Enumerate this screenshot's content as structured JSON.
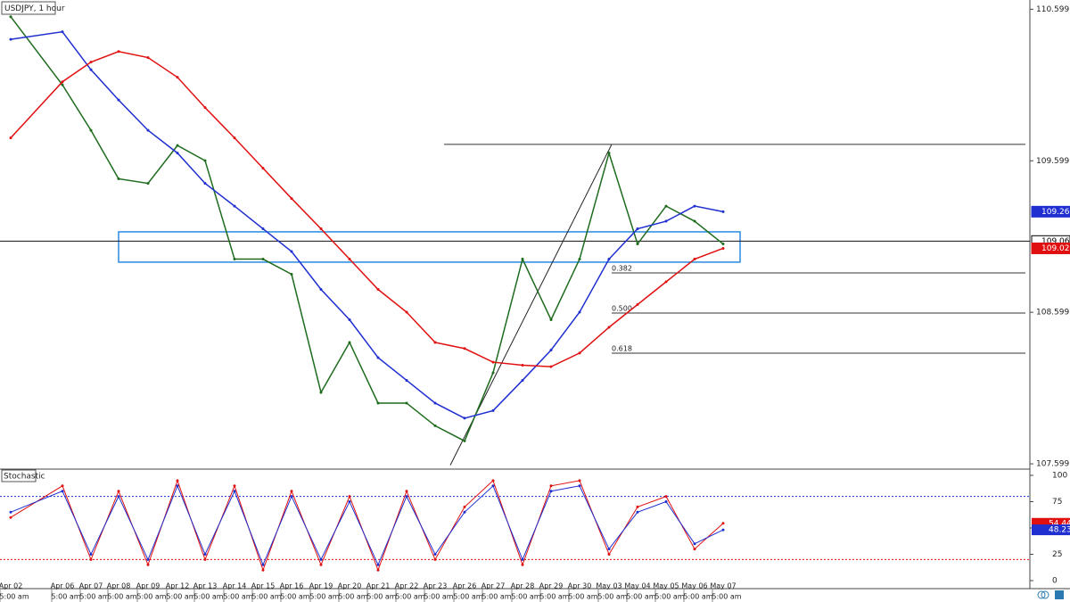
{
  "chart_data": [
    {
      "type": "line",
      "title": "USDJPY, 1 hour",
      "categories": [
        "Apr 02",
        "Apr 06",
        "Apr 07",
        "Apr 08",
        "Apr 09",
        "Apr 12",
        "Apr 13",
        "Apr 14",
        "Apr 15",
        "Apr 16",
        "Apr 19",
        "Apr 20",
        "Apr 21",
        "Apr 22",
        "Apr 23",
        "Apr 26",
        "Apr 27",
        "Apr 28",
        "Apr 29",
        "Apr 30",
        "May 03",
        "May 04",
        "May 05",
        "May 06",
        "May 07"
      ],
      "time_label": "5:00 am",
      "series": [
        {
          "color": "#1e6b1e",
          "values": [
            110.55,
            110.1,
            109.8,
            109.48,
            109.45,
            109.7,
            109.6,
            108.95,
            108.95,
            108.85,
            108.07,
            108.4,
            108.0,
            108.0,
            107.85,
            107.75,
            108.2,
            108.95,
            108.55,
            108.95,
            109.65,
            109.05,
            109.3,
            109.2,
            109.05
          ]
        },
        {
          "color": "#1f2fd0",
          "values": [
            110.4,
            110.45,
            110.2,
            110.0,
            109.8,
            109.65,
            109.45,
            109.3,
            109.15,
            109.0,
            108.75,
            108.55,
            108.3,
            108.15,
            108.0,
            107.9,
            107.95,
            108.15,
            108.35,
            108.6,
            108.95,
            109.15,
            109.2,
            109.3,
            109.263
          ]
        },
        {
          "color": "#e01010",
          "values": [
            109.75,
            110.12,
            110.25,
            110.32,
            110.28,
            110.15,
            109.95,
            109.75,
            109.55,
            109.35,
            109.15,
            108.95,
            108.75,
            108.6,
            108.4,
            108.36,
            108.27,
            108.25,
            108.24,
            108.33,
            108.5,
            108.65,
            108.8,
            108.95,
            109.021
          ]
        }
      ],
      "ylim": [
        107.57,
        110.66
      ],
      "yticks": [
        107.599,
        108.599,
        109.599,
        110.599
      ],
      "zone": [
        108.93,
        109.13
      ],
      "current_price": 109.069,
      "swing_high": 109.707,
      "trend_line": [
        107.59,
        109.707
      ],
      "fib_levels": [
        {
          "label": "0.382",
          "value": 108.859
        },
        {
          "label": "0.500",
          "value": 108.594
        },
        {
          "label": "0.618",
          "value": 108.329
        }
      ],
      "price_labels": [
        {
          "value": 109.263,
          "color": "#1f2fd0"
        },
        {
          "value": 109.069,
          "color": "#000000"
        },
        {
          "value": 109.021,
          "color": "#e01010"
        }
      ]
    },
    {
      "type": "line",
      "title": "Stochastic",
      "series": [
        {
          "color": "#e01010",
          "values": [
            60,
            90,
            20,
            85,
            15,
            95,
            20,
            90,
            10,
            85,
            15,
            80,
            10,
            85,
            20,
            70,
            95,
            15,
            90,
            95,
            25,
            70,
            80,
            30,
            54.44
          ]
        },
        {
          "color": "#1f2fd0",
          "values": [
            65,
            85,
            25,
            80,
            20,
            90,
            25,
            85,
            15,
            80,
            20,
            75,
            15,
            80,
            25,
            65,
            90,
            20,
            85,
            90,
            30,
            65,
            75,
            35,
            48.23
          ]
        }
      ],
      "ylim": [
        0,
        100
      ],
      "yticks": [
        0,
        25,
        50,
        75,
        100
      ],
      "levels": [
        {
          "value": 80,
          "color": "#1f2fd0"
        },
        {
          "value": 20,
          "color": "#e01010"
        }
      ]
    }
  ]
}
